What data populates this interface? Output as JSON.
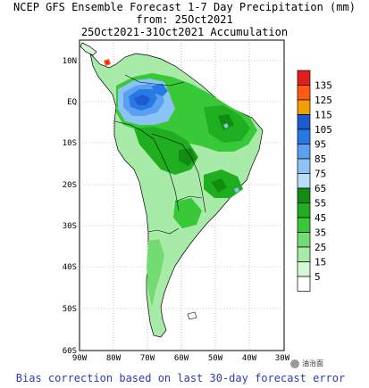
{
  "title": {
    "line1": "NCEP GFS Ensemble Forecast 1-7 Day Precipitation (mm)",
    "line2": "from: 25Oct2021",
    "line3": "25Oct2021-31Oct2021 Accumulation"
  },
  "axes": {
    "lat_labels": [
      "10N",
      "EQ",
      "10S",
      "20S",
      "30S",
      "40S",
      "50S",
      "60S"
    ],
    "lon_labels": [
      "90W",
      "80W",
      "70W",
      "60W",
      "50W",
      "40W",
      "30W"
    ]
  },
  "legend": {
    "levels": [
      {
        "label": "135",
        "color": "#e01e1e"
      },
      {
        "label": "125",
        "color": "#ff5a14"
      },
      {
        "label": "115",
        "color": "#f0a000"
      },
      {
        "label": "105",
        "color": "#1e5ad2"
      },
      {
        "label": "95",
        "color": "#2878e6"
      },
      {
        "label": "85",
        "color": "#5a9ff0"
      },
      {
        "label": "75",
        "color": "#8cc3f5"
      },
      {
        "label": "65",
        "color": "#b9dcf8"
      },
      {
        "label": "55",
        "color": "#118c11"
      },
      {
        "label": "45",
        "color": "#1fae1f"
      },
      {
        "label": "35",
        "color": "#38c838"
      },
      {
        "label": "25",
        "color": "#72db72"
      },
      {
        "label": "15",
        "color": "#a8eba8"
      },
      {
        "label": "5",
        "color": "#d6f7d6"
      },
      {
        "label": "",
        "color": "#ffffff"
      }
    ]
  },
  "footer": "Bias correction based on last 30-day forecast error",
  "watermark": "油治面"
}
